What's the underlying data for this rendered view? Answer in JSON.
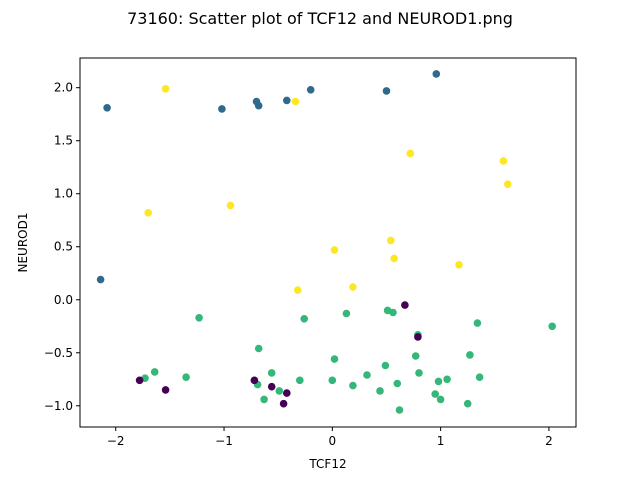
{
  "chart_data": {
    "type": "scatter",
    "title": "73160: Scatter plot of TCF12 and NEUROD1.png",
    "xlabel": "TCF12",
    "ylabel": "NEUROD1",
    "xlim": [
      -2.33,
      2.25
    ],
    "ylim": [
      -1.2,
      2.28
    ],
    "xticks": [
      {
        "value": -2,
        "label": "−2"
      },
      {
        "value": -1,
        "label": "−1"
      },
      {
        "value": 0,
        "label": "0"
      },
      {
        "value": 1,
        "label": "1"
      },
      {
        "value": 2,
        "label": "2"
      }
    ],
    "yticks": [
      {
        "value": -1.0,
        "label": "−1.0"
      },
      {
        "value": -0.5,
        "label": "−0.5"
      },
      {
        "value": 0.0,
        "label": "0.0"
      },
      {
        "value": 0.5,
        "label": "0.5"
      },
      {
        "value": 1.0,
        "label": "1.0"
      },
      {
        "value": 1.5,
        "label": "1.5"
      },
      {
        "value": 2.0,
        "label": "2.0"
      }
    ],
    "grid": false,
    "legend": "none",
    "group_colors": [
      "#440154",
      "#31688e",
      "#35b779",
      "#fde725"
    ],
    "points": [
      {
        "x": -2.08,
        "y": 1.81,
        "g": 1
      },
      {
        "x": -1.02,
        "y": 1.8,
        "g": 1
      },
      {
        "x": -0.7,
        "y": 1.87,
        "g": 1
      },
      {
        "x": -0.68,
        "y": 1.83,
        "g": 1
      },
      {
        "x": -0.42,
        "y": 1.88,
        "g": 1
      },
      {
        "x": -0.2,
        "y": 1.98,
        "g": 1
      },
      {
        "x": 0.5,
        "y": 1.97,
        "g": 1
      },
      {
        "x": 0.96,
        "y": 2.13,
        "g": 1
      },
      {
        "x": -2.14,
        "y": 0.19,
        "g": 1
      },
      {
        "x": -1.54,
        "y": 1.99,
        "g": 3
      },
      {
        "x": -0.34,
        "y": 1.87,
        "g": 3
      },
      {
        "x": 0.72,
        "y": 1.38,
        "g": 3
      },
      {
        "x": 1.58,
        "y": 1.31,
        "g": 3
      },
      {
        "x": 1.62,
        "y": 1.09,
        "g": 3
      },
      {
        "x": -1.7,
        "y": 0.82,
        "g": 3
      },
      {
        "x": -0.94,
        "y": 0.89,
        "g": 3
      },
      {
        "x": 0.54,
        "y": 0.56,
        "g": 3
      },
      {
        "x": 0.02,
        "y": 0.47,
        "g": 3
      },
      {
        "x": 0.57,
        "y": 0.39,
        "g": 3
      },
      {
        "x": 1.17,
        "y": 0.33,
        "g": 3
      },
      {
        "x": -0.32,
        "y": 0.09,
        "g": 3
      },
      {
        "x": 0.19,
        "y": 0.12,
        "g": 3
      },
      {
        "x": -1.23,
        "y": -0.17,
        "g": 2
      },
      {
        "x": -0.26,
        "y": -0.18,
        "g": 2
      },
      {
        "x": 0.13,
        "y": -0.13,
        "g": 2
      },
      {
        "x": 0.51,
        "y": -0.1,
        "g": 2
      },
      {
        "x": 0.56,
        "y": -0.12,
        "g": 2
      },
      {
        "x": 0.79,
        "y": -0.33,
        "g": 2
      },
      {
        "x": 1.34,
        "y": -0.22,
        "g": 2
      },
      {
        "x": 2.03,
        "y": -0.25,
        "g": 2
      },
      {
        "x": -0.68,
        "y": -0.46,
        "g": 2
      },
      {
        "x": 0.02,
        "y": -0.56,
        "g": 2
      },
      {
        "x": 0.77,
        "y": -0.53,
        "g": 2
      },
      {
        "x": 1.27,
        "y": -0.52,
        "g": 2
      },
      {
        "x": 0.49,
        "y": -0.62,
        "g": 2
      },
      {
        "x": -1.64,
        "y": -0.68,
        "g": 2
      },
      {
        "x": -0.56,
        "y": -0.69,
        "g": 2
      },
      {
        "x": 0.32,
        "y": -0.71,
        "g": 2
      },
      {
        "x": 0.8,
        "y": -0.69,
        "g": 2
      },
      {
        "x": -1.73,
        "y": -0.74,
        "g": 2
      },
      {
        "x": -1.35,
        "y": -0.73,
        "g": 2
      },
      {
        "x": 1.06,
        "y": -0.75,
        "g": 2
      },
      {
        "x": 1.36,
        "y": -0.73,
        "g": 2
      },
      {
        "x": -0.69,
        "y": -0.8,
        "g": 2
      },
      {
        "x": -0.3,
        "y": -0.76,
        "g": 2
      },
      {
        "x": 0.0,
        "y": -0.76,
        "g": 2
      },
      {
        "x": 0.98,
        "y": -0.77,
        "g": 2
      },
      {
        "x": 0.19,
        "y": -0.81,
        "g": 2
      },
      {
        "x": 0.6,
        "y": -0.79,
        "g": 2
      },
      {
        "x": -0.49,
        "y": -0.86,
        "g": 2
      },
      {
        "x": 0.44,
        "y": -0.86,
        "g": 2
      },
      {
        "x": 0.95,
        "y": -0.89,
        "g": 2
      },
      {
        "x": -0.63,
        "y": -0.94,
        "g": 2
      },
      {
        "x": 1.0,
        "y": -0.94,
        "g": 2
      },
      {
        "x": 1.25,
        "y": -0.98,
        "g": 2
      },
      {
        "x": 0.62,
        "y": -1.04,
        "g": 2
      },
      {
        "x": 0.67,
        "y": -0.05,
        "g": 0
      },
      {
        "x": 0.79,
        "y": -0.35,
        "g": 0
      },
      {
        "x": -1.78,
        "y": -0.76,
        "g": 0
      },
      {
        "x": -0.72,
        "y": -0.76,
        "g": 0
      },
      {
        "x": -0.56,
        "y": -0.82,
        "g": 0
      },
      {
        "x": -1.54,
        "y": -0.85,
        "g": 0
      },
      {
        "x": -0.42,
        "y": -0.88,
        "g": 0
      },
      {
        "x": -0.45,
        "y": -0.98,
        "g": 0
      }
    ]
  }
}
